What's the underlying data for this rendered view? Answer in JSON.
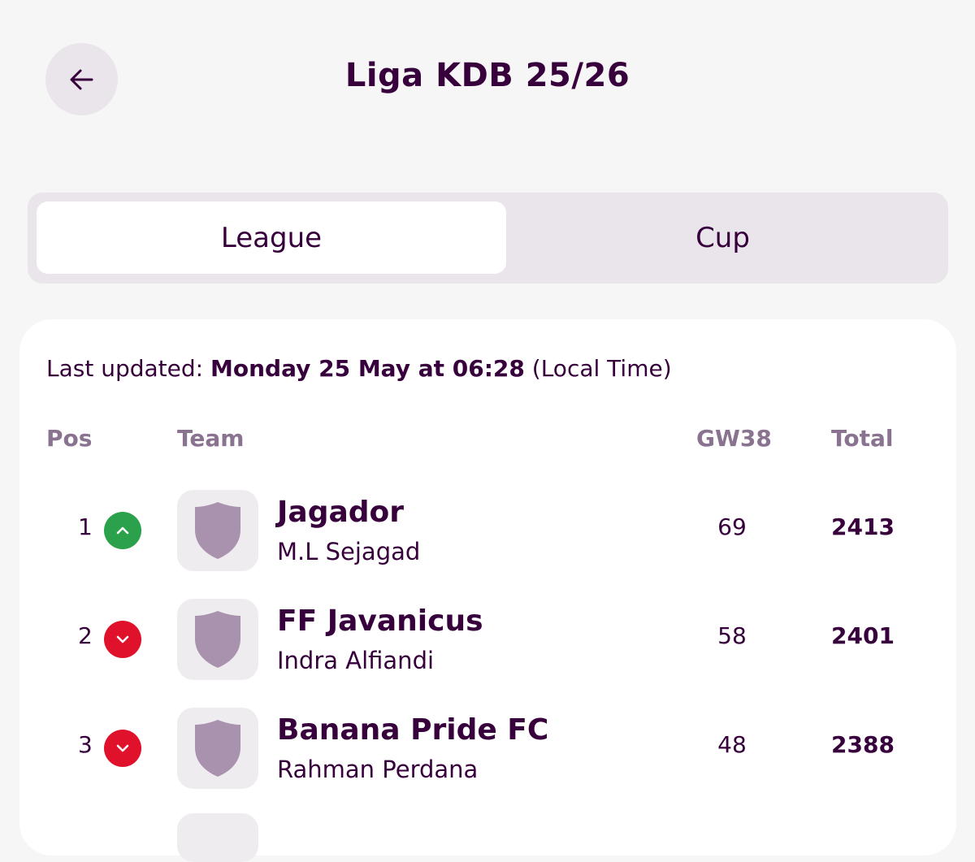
{
  "header": {
    "title": "Liga KDB 25/26",
    "back_icon": "arrow-left-icon"
  },
  "tabs": [
    {
      "label": "League",
      "active": true
    },
    {
      "label": "Cup",
      "active": false
    }
  ],
  "status": {
    "prefix": "Last updated: ",
    "datetime": "Monday 25 May at 06:28",
    "suffix": " (Local Time)"
  },
  "table": {
    "columns": {
      "pos": "Pos",
      "team": "Team",
      "gw": "GW38",
      "total": "Total"
    },
    "rows": [
      {
        "pos": "1",
        "movement": "up",
        "team": "Jagador",
        "manager": "M.L Sejagad",
        "gw": "69",
        "total": "2413"
      },
      {
        "pos": "2",
        "movement": "down",
        "team": "FF Javanicus",
        "manager": "Indra Alfiandi",
        "gw": "58",
        "total": "2401"
      },
      {
        "pos": "3",
        "movement": "down",
        "team": "Banana Pride FC",
        "manager": "Rahman Perdana",
        "gw": "48",
        "total": "2388"
      }
    ]
  },
  "colors": {
    "text": "#37003c",
    "muted": "#8a7390",
    "up": "#2aa14a",
    "down": "#e0112b",
    "crest": "#a892ad"
  }
}
